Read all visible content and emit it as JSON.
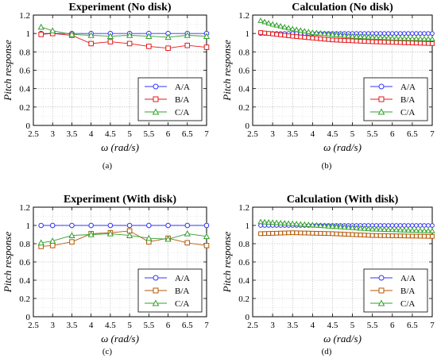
{
  "chart_data": [
    {
      "type": "line",
      "caption": "(a)",
      "title": "Experiment (No disk)",
      "xlabel": "ω (rad/s)",
      "ylabel": "Pitch response",
      "xlim": [
        2.5,
        7
      ],
      "ylim": [
        0,
        1.2
      ],
      "xticks": [
        "2.5",
        "3",
        "3.5",
        "4",
        "4.5",
        "5",
        "5.5",
        "6",
        "6.5",
        "7"
      ],
      "yticks": [
        "0",
        "0.2",
        "0.4",
        "0.6",
        "0.8",
        "1",
        "1.2"
      ],
      "grid": true,
      "legend_position": "bottom-right",
      "series": [
        {
          "name": "A/A",
          "color": "#3333ff",
          "marker": "circle",
          "x": [
            2.7,
            3,
            3.5,
            4,
            4.5,
            5,
            5.5,
            6,
            6.5,
            7
          ],
          "y": [
            1,
            1,
            1,
            1,
            1,
            1,
            1,
            1,
            1,
            1
          ]
        },
        {
          "name": "B/A",
          "color": "#e41a1c",
          "marker": "square",
          "x": [
            2.7,
            3,
            3.5,
            4,
            4.5,
            5,
            5.5,
            6,
            6.5,
            7
          ],
          "y": [
            0.99,
            1.0,
            0.98,
            0.89,
            0.91,
            0.89,
            0.86,
            0.84,
            0.87,
            0.85
          ]
        },
        {
          "name": "C/A",
          "color": "#33a02c",
          "marker": "triangle",
          "x": [
            2.7,
            3,
            3.5,
            4,
            4.5,
            5,
            5.5,
            6,
            6.5,
            7
          ],
          "y": [
            1.07,
            1.03,
            0.99,
            0.98,
            0.97,
            0.98,
            0.97,
            0.96,
            0.98,
            0.97
          ]
        }
      ]
    },
    {
      "type": "line",
      "caption": "(b)",
      "title": "Calculation (No disk)",
      "xlabel": "ω (rad/s)",
      "ylabel": "Pitch response",
      "xlim": [
        2.5,
        7
      ],
      "ylim": [
        0,
        1.2
      ],
      "xticks": [
        "2.5",
        "3",
        "3.5",
        "4",
        "4.5",
        "5",
        "5.5",
        "6",
        "6.5",
        "7"
      ],
      "yticks": [
        "0",
        "0.2",
        "0.4",
        "0.6",
        "0.8",
        "1",
        "1.2"
      ],
      "grid": true,
      "legend_position": "bottom-right",
      "series": [
        {
          "name": "A/A",
          "color": "#3333ff",
          "marker": "circle",
          "dense": true,
          "fn": [
            [
              2.7,
              1.0
            ],
            [
              7.0,
              1.0
            ]
          ]
        },
        {
          "name": "B/A",
          "color": "#e41a1c",
          "marker": "square",
          "dense": true,
          "fn": [
            [
              2.7,
              1.01
            ],
            [
              3.5,
              0.97
            ],
            [
              4.5,
              0.93
            ],
            [
              5.5,
              0.91
            ],
            [
              7.0,
              0.89
            ]
          ]
        },
        {
          "name": "C/A",
          "color": "#33a02c",
          "marker": "triangle",
          "dense": true,
          "fn": [
            [
              2.7,
              1.14
            ],
            [
              3.0,
              1.1
            ],
            [
              3.5,
              1.05
            ],
            [
              4.0,
              1.01
            ],
            [
              5.0,
              0.97
            ],
            [
              6.0,
              0.95
            ],
            [
              7.0,
              0.94
            ]
          ]
        }
      ]
    },
    {
      "type": "line",
      "caption": "(c)",
      "title": "Experiment (With disk)",
      "xlabel": "ω (rad/s)",
      "ylabel": "Pitch response",
      "xlim": [
        2.5,
        7
      ],
      "ylim": [
        0,
        1.2
      ],
      "xticks": [
        "2.5",
        "3",
        "3.5",
        "4",
        "4.5",
        "5",
        "5.5",
        "6",
        "6.5",
        "7"
      ],
      "yticks": [
        "0",
        "0.2",
        "0.4",
        "0.6",
        "0.8",
        "1",
        "1.2"
      ],
      "grid": true,
      "legend_position": "bottom-right",
      "series": [
        {
          "name": "A/A",
          "color": "#3333ff",
          "marker": "circle",
          "x": [
            2.7,
            3,
            3.5,
            4,
            4.5,
            5,
            5.5,
            6,
            6.5,
            7
          ],
          "y": [
            1,
            1,
            1,
            1,
            1,
            1,
            1,
            1,
            1,
            1
          ]
        },
        {
          "name": "B/A",
          "color": "#b35806",
          "marker": "square",
          "x": [
            2.7,
            3,
            3.5,
            4,
            4.5,
            5,
            5.5,
            6,
            6.5,
            7
          ],
          "y": [
            0.77,
            0.78,
            0.82,
            0.91,
            0.92,
            0.94,
            0.82,
            0.86,
            0.81,
            0.78
          ]
        },
        {
          "name": "C/A",
          "color": "#33a02c",
          "marker": "triangle",
          "x": [
            2.7,
            3,
            3.5,
            4,
            4.5,
            5,
            5.5,
            6,
            6.5,
            7
          ],
          "y": [
            0.81,
            0.83,
            0.89,
            0.9,
            0.91,
            0.89,
            0.86,
            0.85,
            0.91,
            0.88
          ]
        }
      ]
    },
    {
      "type": "line",
      "caption": "(d)",
      "title": "Calculation (With disk)",
      "xlabel": "ω (rad/s)",
      "ylabel": "Pitch response",
      "xlim": [
        2.5,
        7
      ],
      "ylim": [
        0,
        1.2
      ],
      "xticks": [
        "2.5",
        "3",
        "3.5",
        "4",
        "4.5",
        "5",
        "5.5",
        "6",
        "6.5",
        "7"
      ],
      "yticks": [
        "0",
        "0.2",
        "0.4",
        "0.6",
        "0.8",
        "1",
        "1.2"
      ],
      "grid": true,
      "legend_position": "bottom-right",
      "series": [
        {
          "name": "A/A",
          "color": "#3333ff",
          "marker": "circle",
          "dense": true,
          "fn": [
            [
              2.7,
              1.0
            ],
            [
              7.0,
              1.0
            ]
          ]
        },
        {
          "name": "B/A",
          "color": "#b35806",
          "marker": "square",
          "dense": true,
          "fn": [
            [
              2.7,
              0.91
            ],
            [
              3.5,
              0.92
            ],
            [
              4.5,
              0.91
            ],
            [
              5.5,
              0.89
            ],
            [
              7.0,
              0.88
            ]
          ]
        },
        {
          "name": "C/A",
          "color": "#33a02c",
          "marker": "triangle",
          "dense": true,
          "fn": [
            [
              2.7,
              1.04
            ],
            [
              3.5,
              1.02
            ],
            [
              4.5,
              0.99
            ],
            [
              5.5,
              0.96
            ],
            [
              7.0,
              0.94
            ]
          ]
        }
      ]
    }
  ]
}
